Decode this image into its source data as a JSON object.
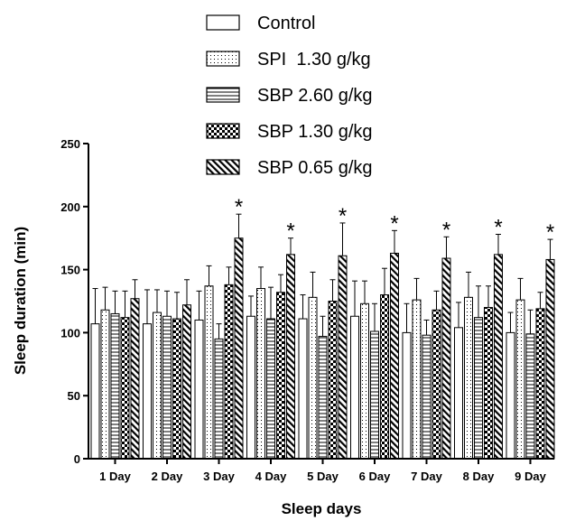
{
  "chart_data": {
    "type": "bar",
    "title": "",
    "xlabel": "Sleep days",
    "ylabel": "Sleep duration (min)",
    "ylim": [
      0,
      250
    ],
    "yticks": [
      0,
      50,
      100,
      150,
      200,
      250
    ],
    "categories": [
      "1 Day",
      "2 Day",
      "3 Day",
      "4 Day",
      "5 Day",
      "6 Day",
      "7 Day",
      "8 Day",
      "9 Day"
    ],
    "legend_position": "top",
    "significance_marker": "*",
    "series": [
      {
        "name": "Control",
        "pattern": "blank",
        "values": [
          107,
          107,
          110,
          113,
          111,
          113,
          100,
          104,
          100
        ],
        "errors": [
          28,
          27,
          23,
          16,
          19,
          28,
          23,
          20,
          16
        ],
        "significant": [
          false,
          false,
          false,
          false,
          false,
          false,
          false,
          false,
          false
        ]
      },
      {
        "name": "SPI  1.30 g/kg",
        "pattern": "dots",
        "values": [
          118,
          116,
          137,
          135,
          128,
          123,
          126,
          128,
          126
        ],
        "errors": [
          18,
          18,
          16,
          17,
          20,
          18,
          17,
          20,
          17
        ],
        "significant": [
          false,
          false,
          false,
          false,
          false,
          false,
          false,
          false,
          false
        ]
      },
      {
        "name": "SBP 2.60 g/kg",
        "pattern": "hlines",
        "values": [
          115,
          113,
          95,
          111,
          97,
          101,
          98,
          112,
          99
        ],
        "errors": [
          18,
          20,
          12,
          25,
          16,
          22,
          12,
          25,
          19
        ],
        "significant": [
          false,
          false,
          false,
          false,
          false,
          false,
          false,
          false,
          false
        ]
      },
      {
        "name": "SBP 1.30 g/kg",
        "pattern": "checker",
        "values": [
          112,
          111,
          138,
          132,
          125,
          130,
          118,
          120,
          119
        ],
        "errors": [
          21,
          21,
          14,
          14,
          17,
          21,
          15,
          17,
          13
        ],
        "significant": [
          false,
          false,
          false,
          false,
          false,
          false,
          false,
          false,
          false
        ]
      },
      {
        "name": "SBP 0.65 g/kg",
        "pattern": "diagonal",
        "values": [
          127,
          122,
          175,
          162,
          161,
          163,
          159,
          162,
          158
        ],
        "errors": [
          15,
          20,
          19,
          13,
          26,
          18,
          17,
          16,
          16
        ],
        "significant": [
          false,
          false,
          true,
          true,
          true,
          true,
          true,
          true,
          true
        ]
      }
    ]
  }
}
